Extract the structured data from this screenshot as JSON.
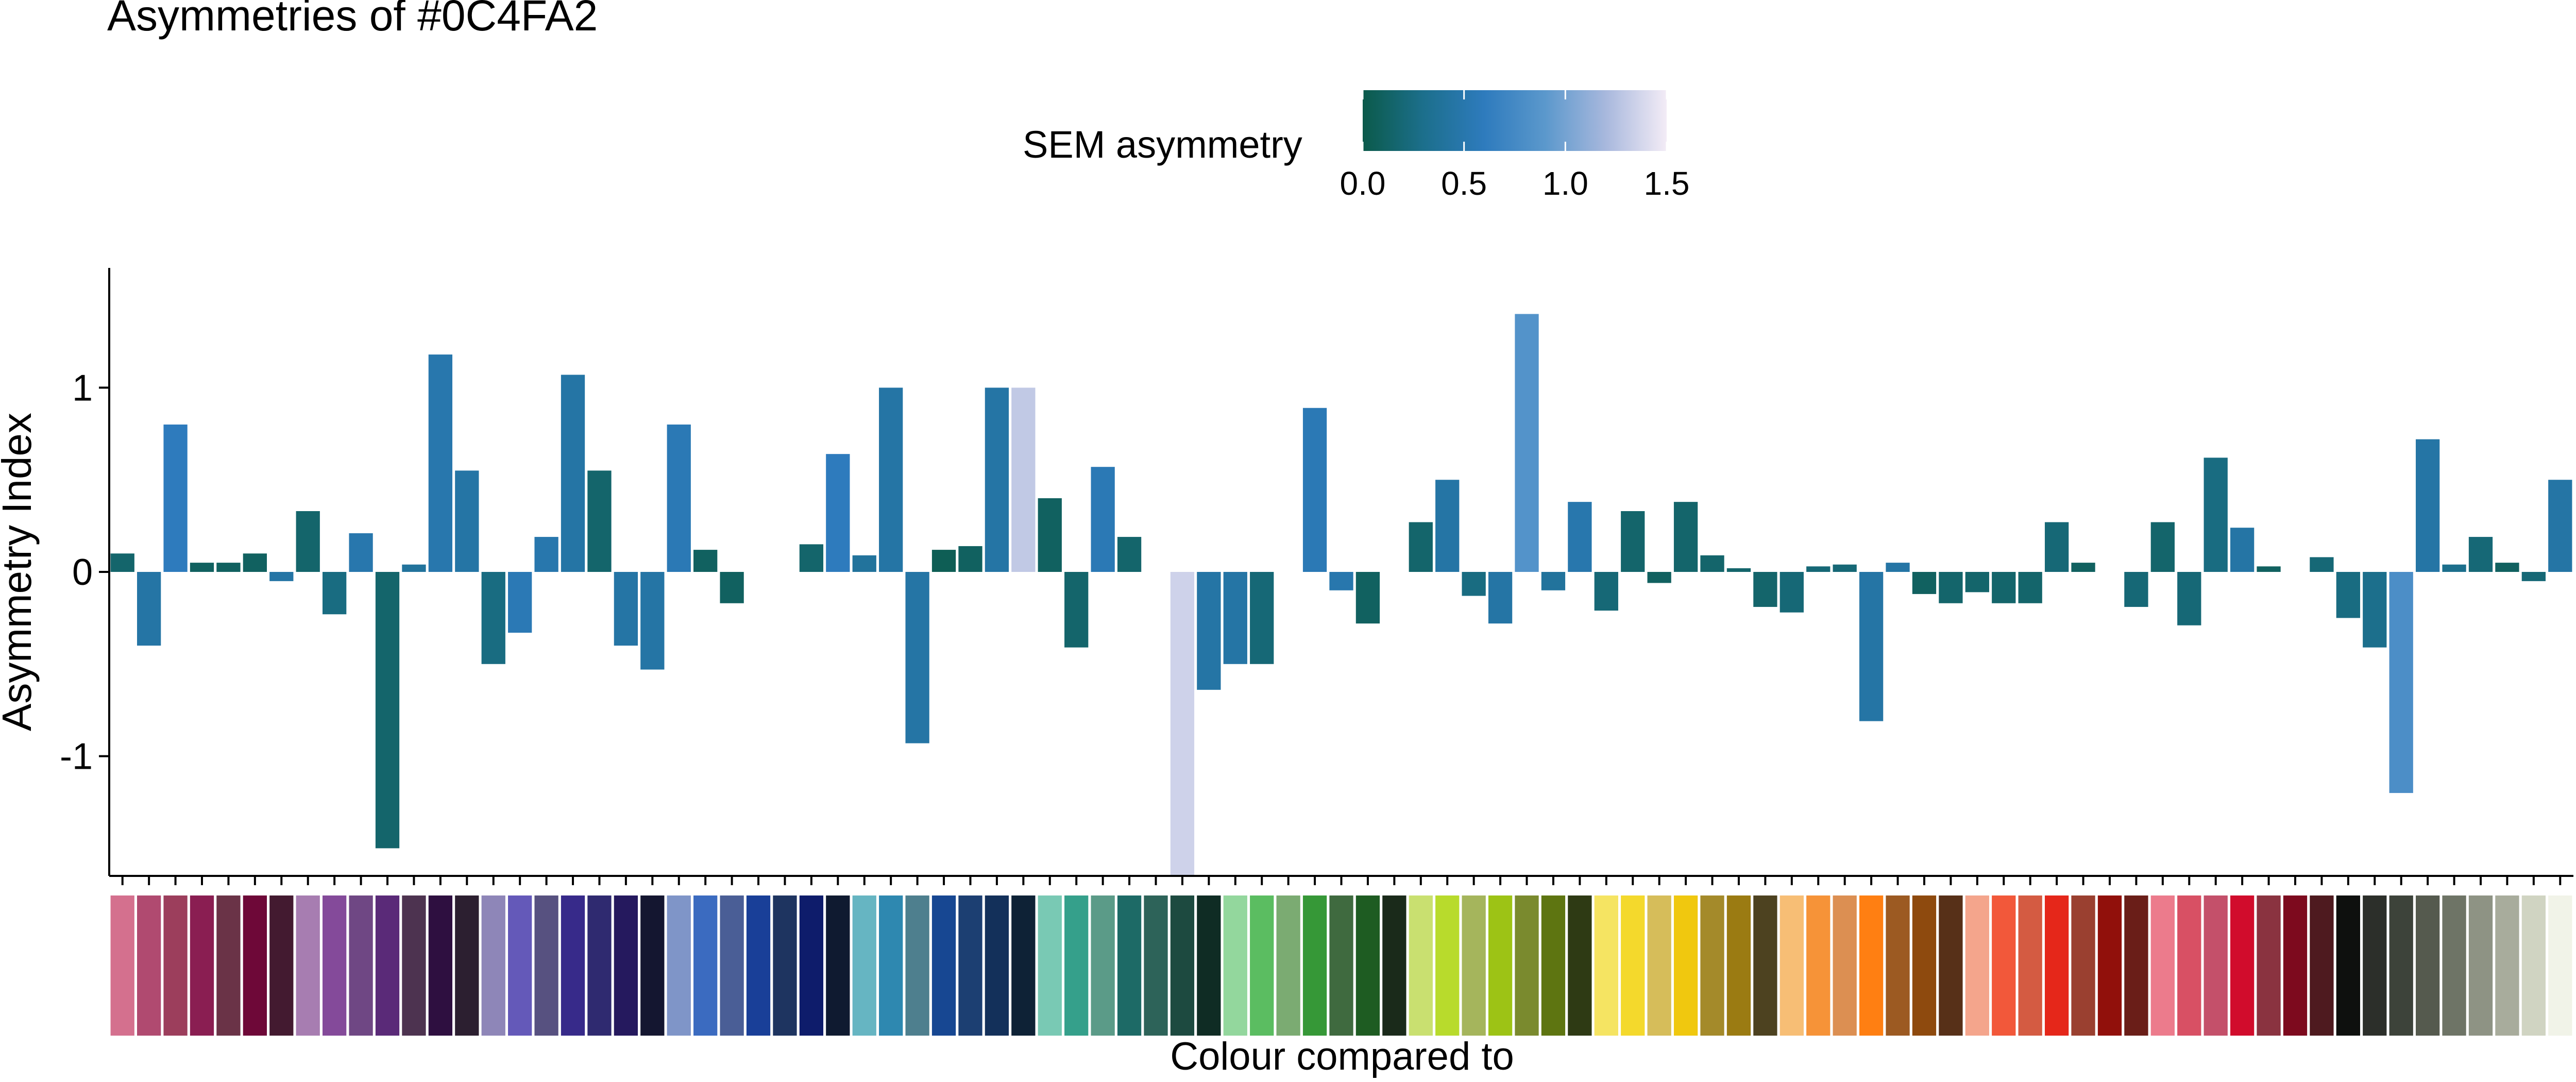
{
  "chart_data": {
    "type": "bar",
    "title": "Asymmetries of #0C4FA2",
    "xlabel": "Colour compared to",
    "ylabel": "Asymmetry Index",
    "ylim": [
      -1.65,
      1.65
    ],
    "y_ticks": [
      -1,
      0,
      1
    ],
    "y_tick_labels": [
      "-1",
      "0",
      "1"
    ],
    "grid": false,
    "legend": {
      "title": "SEM asymmetry",
      "position": "top",
      "range": [
        0,
        1.5
      ],
      "ticks": [
        0.0,
        0.5,
        1.0,
        1.5
      ],
      "tick_labels": [
        "0.0",
        "0.5",
        "1.0",
        "1.5"
      ],
      "gradient": [
        "#0b5a4a",
        "#1c6f8c",
        "#2e7bbd",
        "#5b98cc",
        "#a8b8dd",
        "#f3ecf6"
      ]
    },
    "rug_color": "#0C4FA2",
    "categories": [
      "#D4708E",
      "#B04A70",
      "#9C3E5C",
      "#8A1E52",
      "#6A3347",
      "#6E0838",
      "#431A30",
      "#A77DB1",
      "#844A9A",
      "#6F4784",
      "#5A2A78",
      "#4D3350",
      "#2E0F40",
      "#2C1F30",
      "#8E86B8",
      "#6459B9",
      "#575180",
      "#372A8A",
      "#2F2A70",
      "#25195E",
      "#141630",
      "#7F95C8",
      "#3B6BC0",
      "#4A5E96",
      "#193F98",
      "#1E3460",
      "#0E1C6B",
      "#0F1A30",
      "#66B5C2",
      "#2E88B0",
      "#4E7F8E",
      "#174792",
      "#1C3F72",
      "#13305A",
      "#0E2236",
      "#79C9B4",
      "#35A08B",
      "#5B9B88",
      "#1D6A66",
      "#2D6359",
      "#1D4A40",
      "#0F2C24",
      "#93D79D",
      "#5BBD61",
      "#7BAB72",
      "#369837",
      "#3F6A3F",
      "#1E5C22",
      "#1A2A1A",
      "#C9E070",
      "#B8DB2C",
      "#A5B55C",
      "#9DC315",
      "#7A8A2E",
      "#5E7511",
      "#2E3A14",
      "#F5E462",
      "#F4D92C",
      "#D6BD5A",
      "#F0C80F",
      "#A48A2A",
      "#9B7B12",
      "#4D4220",
      "#F7BE75",
      "#F69338",
      "#DC8F52",
      "#FF7F12",
      "#9C5A22",
      "#8E4A0E",
      "#573018",
      "#F4A58C",
      "#F2583A",
      "#D45B42",
      "#E5271A",
      "#9A4030",
      "#91100B",
      "#6A1E18",
      "#EC7B8C",
      "#D85064",
      "#C4506A",
      "#D10C2C",
      "#8A3340",
      "#7D0A1E",
      "#4E1A1F",
      "#0E100E",
      "#2C2F2A",
      "#3D433A",
      "#555A4E",
      "#6E7466",
      "#8E9384",
      "#A8AC9C",
      "#D0D4C2",
      "#F1F3E8"
    ],
    "values": [
      0.1,
      -0.4,
      0.8,
      0.05,
      0.05,
      0.1,
      -0.05,
      0.33,
      -0.23,
      0.21,
      -1.5,
      0.04,
      1.18,
      0.55,
      -0.5,
      -0.33,
      0.19,
      1.07,
      0.55,
      -0.4,
      -0.53,
      0.8,
      0.12,
      -0.17,
      0.0,
      0.0,
      0.15,
      0.64,
      0.09,
      1.0,
      -0.93,
      0.12,
      0.14,
      1.0,
      1.0,
      0.4,
      -0.41,
      0.57,
      0.19,
      0.0,
      -1.65,
      -0.64,
      -0.5,
      -0.5,
      0.0,
      0.89,
      -0.1,
      -0.28,
      0.0,
      0.27,
      0.5,
      -0.13,
      -0.28,
      1.4,
      -0.1,
      0.38,
      -0.21,
      0.33,
      -0.06,
      0.38,
      0.09,
      0.02,
      -0.19,
      -0.22,
      0.03,
      0.04,
      -0.81,
      0.05,
      -0.12,
      -0.17,
      -0.11,
      -0.17,
      -0.17,
      0.27,
      0.05,
      0.0,
      -0.19,
      0.27,
      -0.29,
      0.62,
      0.24,
      0.03,
      0.0,
      0.08,
      -0.25,
      -0.41,
      -1.2,
      0.72,
      0.04,
      0.19,
      0.05,
      -0.05,
      0.5
    ],
    "sem": [
      0.15,
      0.45,
      0.6,
      0.1,
      0.1,
      0.1,
      0.45,
      0.15,
      0.25,
      0.5,
      0.15,
      0.4,
      0.5,
      0.45,
      0.25,
      0.55,
      0.5,
      0.45,
      0.15,
      0.45,
      0.45,
      0.55,
      0.1,
      0.1,
      0.1,
      0.1,
      0.15,
      0.6,
      0.4,
      0.45,
      0.45,
      0.05,
      0.1,
      0.45,
      1.3,
      0.1,
      0.15,
      0.55,
      0.15,
      0.1,
      1.35,
      0.45,
      0.45,
      0.2,
      0.1,
      0.55,
      0.5,
      0.1,
      0.1,
      0.15,
      0.45,
      0.25,
      0.45,
      0.85,
      0.4,
      0.5,
      0.2,
      0.15,
      0.1,
      0.15,
      0.15,
      0.15,
      0.15,
      0.2,
      0.2,
      0.2,
      0.45,
      0.45,
      0.1,
      0.15,
      0.15,
      0.15,
      0.15,
      0.2,
      0.1,
      0.1,
      0.2,
      0.15,
      0.2,
      0.25,
      0.45,
      0.1,
      0.1,
      0.2,
      0.25,
      0.3,
      0.8,
      0.45,
      0.3,
      0.2,
      0.1,
      0.2,
      0.45
    ]
  }
}
